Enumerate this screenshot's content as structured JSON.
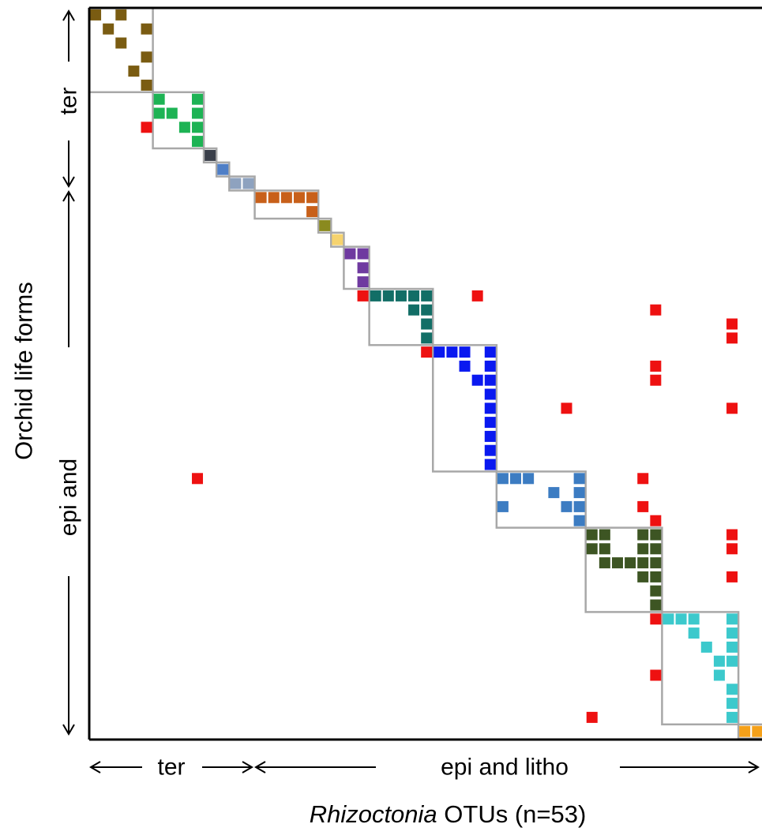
{
  "chart_data": {
    "type": "heatmap",
    "description_of_axes": {
      "x_axis_title_italic": "Rhizoctonia",
      "x_axis_title_rest": " OTUs (n=53)",
      "y_axis_title": "Orchid life forms"
    },
    "x_groups": [
      {
        "label": "ter",
        "col_start": 0,
        "col_end": 11
      },
      {
        "label": "epi and litho",
        "col_start": 12,
        "col_end": 52
      }
    ],
    "y_groups": [
      {
        "label": "ter",
        "row_start": 0,
        "row_end": 11
      },
      {
        "label": "epi and",
        "row_start": 12,
        "row_end": 51
      }
    ],
    "n_columns": 53,
    "n_rows": 52,
    "modules": [
      {
        "color": "#7a5c12",
        "c0": 0,
        "c1": 4,
        "r0": 0,
        "r1": 5
      },
      {
        "color": "#1db354",
        "c0": 5,
        "c1": 8,
        "r0": 6,
        "r1": 9
      },
      {
        "color": "#3a3f4a",
        "c0": 9,
        "c1": 9,
        "r0": 10,
        "r1": 10
      },
      {
        "color": "#4f7fc7",
        "c0": 10,
        "c1": 10,
        "r0": 11,
        "r1": 11
      },
      {
        "color": "#8ea2bf",
        "c0": 11,
        "c1": 12,
        "r0": 12,
        "r1": 12
      },
      {
        "color": "#c8601a",
        "c0": 13,
        "c1": 17,
        "r0": 13,
        "r1": 14
      },
      {
        "color": "#8a8a1f",
        "c0": 18,
        "c1": 18,
        "r0": 15,
        "r1": 15
      },
      {
        "color": "#f6d36e",
        "c0": 19,
        "c1": 19,
        "r0": 16,
        "r1": 16
      },
      {
        "color": "#6f3aa0",
        "c0": 20,
        "c1": 21,
        "r0": 17,
        "r1": 19
      },
      {
        "color": "#126e66",
        "c0": 22,
        "c1": 26,
        "r0": 20,
        "r1": 23
      },
      {
        "color": "#0a19f0",
        "c0": 27,
        "c1": 31,
        "r0": 24,
        "r1": 32
      },
      {
        "color": "#3c7cc2",
        "c0": 32,
        "c1": 38,
        "r0": 33,
        "r1": 36
      },
      {
        "color": "#3d5523",
        "c0": 39,
        "c1": 44,
        "r0": 37,
        "r1": 42
      },
      {
        "color": "#3cc9cc",
        "c0": 45,
        "c1": 50,
        "r0": 43,
        "r1": 50
      },
      {
        "color": "#f5a11a",
        "c0": 51,
        "c1": 52,
        "r0": 51,
        "r1": 51
      }
    ],
    "cells": [
      {
        "c": 0,
        "r": 0,
        "m": 0
      },
      {
        "c": 2,
        "r": 0,
        "m": 0
      },
      {
        "c": 1,
        "r": 1,
        "m": 0
      },
      {
        "c": 4,
        "r": 1,
        "m": 0
      },
      {
        "c": 2,
        "r": 2,
        "m": 0
      },
      {
        "c": 4,
        "r": 3,
        "m": 0
      },
      {
        "c": 3,
        "r": 4,
        "m": 0
      },
      {
        "c": 4,
        "r": 5,
        "m": 0
      },
      {
        "c": 5,
        "r": 6,
        "m": 1
      },
      {
        "c": 8,
        "r": 6,
        "m": 1
      },
      {
        "c": 5,
        "r": 7,
        "m": 1
      },
      {
        "c": 6,
        "r": 7,
        "m": 1
      },
      {
        "c": 8,
        "r": 7,
        "m": 1
      },
      {
        "c": 7,
        "r": 8,
        "m": 1
      },
      {
        "c": 8,
        "r": 8,
        "m": 1
      },
      {
        "c": 8,
        "r": 9,
        "m": 1
      },
      {
        "c": 9,
        "r": 10,
        "m": 2
      },
      {
        "c": 10,
        "r": 11,
        "m": 3
      },
      {
        "c": 11,
        "r": 12,
        "m": 4
      },
      {
        "c": 12,
        "r": 12,
        "m": 4
      },
      {
        "c": 13,
        "r": 13,
        "m": 5
      },
      {
        "c": 14,
        "r": 13,
        "m": 5
      },
      {
        "c": 15,
        "r": 13,
        "m": 5
      },
      {
        "c": 16,
        "r": 13,
        "m": 5
      },
      {
        "c": 17,
        "r": 13,
        "m": 5
      },
      {
        "c": 17,
        "r": 14,
        "m": 5
      },
      {
        "c": 18,
        "r": 15,
        "m": 6
      },
      {
        "c": 19,
        "r": 16,
        "m": 7
      },
      {
        "c": 20,
        "r": 17,
        "m": 8
      },
      {
        "c": 21,
        "r": 17,
        "m": 8
      },
      {
        "c": 21,
        "r": 18,
        "m": 8
      },
      {
        "c": 21,
        "r": 19,
        "m": 8
      },
      {
        "c": 22,
        "r": 20,
        "m": 9
      },
      {
        "c": 23,
        "r": 20,
        "m": 9
      },
      {
        "c": 24,
        "r": 20,
        "m": 9
      },
      {
        "c": 25,
        "r": 20,
        "m": 9
      },
      {
        "c": 26,
        "r": 20,
        "m": 9
      },
      {
        "c": 25,
        "r": 21,
        "m": 9
      },
      {
        "c": 26,
        "r": 21,
        "m": 9
      },
      {
        "c": 26,
        "r": 22,
        "m": 9
      },
      {
        "c": 26,
        "r": 23,
        "m": 9
      },
      {
        "c": 27,
        "r": 24,
        "m": 10
      },
      {
        "c": 28,
        "r": 24,
        "m": 10
      },
      {
        "c": 29,
        "r": 24,
        "m": 10
      },
      {
        "c": 31,
        "r": 24,
        "m": 10
      },
      {
        "c": 29,
        "r": 25,
        "m": 10
      },
      {
        "c": 31,
        "r": 25,
        "m": 10
      },
      {
        "c": 30,
        "r": 26,
        "m": 10
      },
      {
        "c": 31,
        "r": 26,
        "m": 10
      },
      {
        "c": 31,
        "r": 27,
        "m": 10
      },
      {
        "c": 31,
        "r": 28,
        "m": 10
      },
      {
        "c": 31,
        "r": 29,
        "m": 10
      },
      {
        "c": 31,
        "r": 30,
        "m": 10
      },
      {
        "c": 31,
        "r": 31,
        "m": 10
      },
      {
        "c": 31,
        "r": 32,
        "m": 10
      },
      {
        "c": 32,
        "r": 33,
        "m": 11
      },
      {
        "c": 33,
        "r": 33,
        "m": 11
      },
      {
        "c": 34,
        "r": 33,
        "m": 11
      },
      {
        "c": 38,
        "r": 33,
        "m": 11
      },
      {
        "c": 36,
        "r": 34,
        "m": 11
      },
      {
        "c": 38,
        "r": 34,
        "m": 11
      },
      {
        "c": 32,
        "r": 35,
        "m": 11
      },
      {
        "c": 37,
        "r": 35,
        "m": 11
      },
      {
        "c": 38,
        "r": 35,
        "m": 11
      },
      {
        "c": 38,
        "r": 36,
        "m": 11
      },
      {
        "c": 39,
        "r": 37,
        "m": 12
      },
      {
        "c": 40,
        "r": 37,
        "m": 12
      },
      {
        "c": 43,
        "r": 37,
        "m": 12
      },
      {
        "c": 44,
        "r": 37,
        "m": 12
      },
      {
        "c": 39,
        "r": 38,
        "m": 12
      },
      {
        "c": 40,
        "r": 38,
        "m": 12
      },
      {
        "c": 43,
        "r": 38,
        "m": 12
      },
      {
        "c": 44,
        "r": 38,
        "m": 12
      },
      {
        "c": 40,
        "r": 39,
        "m": 12
      },
      {
        "c": 41,
        "r": 39,
        "m": 12
      },
      {
        "c": 42,
        "r": 39,
        "m": 12
      },
      {
        "c": 43,
        "r": 39,
        "m": 12
      },
      {
        "c": 44,
        "r": 39,
        "m": 12
      },
      {
        "c": 43,
        "r": 40,
        "m": 12
      },
      {
        "c": 44,
        "r": 40,
        "m": 12
      },
      {
        "c": 44,
        "r": 41,
        "m": 12
      },
      {
        "c": 44,
        "r": 42,
        "m": 12
      },
      {
        "c": 45,
        "r": 43,
        "m": 13
      },
      {
        "c": 46,
        "r": 43,
        "m": 13
      },
      {
        "c": 47,
        "r": 43,
        "m": 13
      },
      {
        "c": 50,
        "r": 43,
        "m": 13
      },
      {
        "c": 47,
        "r": 44,
        "m": 13
      },
      {
        "c": 50,
        "r": 44,
        "m": 13
      },
      {
        "c": 48,
        "r": 45,
        "m": 13
      },
      {
        "c": 50,
        "r": 45,
        "m": 13
      },
      {
        "c": 49,
        "r": 46,
        "m": 13
      },
      {
        "c": 50,
        "r": 46,
        "m": 13
      },
      {
        "c": 49,
        "r": 47,
        "m": 13
      },
      {
        "c": 50,
        "r": 48,
        "m": 13
      },
      {
        "c": 50,
        "r": 49,
        "m": 13
      },
      {
        "c": 50,
        "r": 50,
        "m": 13
      },
      {
        "c": 51,
        "r": 51,
        "m": 14
      },
      {
        "c": 52,
        "r": 51,
        "m": 14
      }
    ],
    "out_of_module_color": "#ee1111",
    "out_of_module_cells": [
      {
        "c": 4,
        "r": 8
      },
      {
        "c": 21,
        "r": 20
      },
      {
        "c": 30,
        "r": 20
      },
      {
        "c": 44,
        "r": 21
      },
      {
        "c": 50,
        "r": 22
      },
      {
        "c": 50,
        "r": 23
      },
      {
        "c": 26,
        "r": 24
      },
      {
        "c": 44,
        "r": 25
      },
      {
        "c": 44,
        "r": 26
      },
      {
        "c": 37,
        "r": 28
      },
      {
        "c": 50,
        "r": 28
      },
      {
        "c": 8,
        "r": 33
      },
      {
        "c": 43,
        "r": 33
      },
      {
        "c": 43,
        "r": 35
      },
      {
        "c": 44,
        "r": 36
      },
      {
        "c": 50,
        "r": 37
      },
      {
        "c": 50,
        "r": 38
      },
      {
        "c": 50,
        "r": 40
      },
      {
        "c": 44,
        "r": 43
      },
      {
        "c": 44,
        "r": 47
      },
      {
        "c": 39,
        "r": 50
      }
    ]
  }
}
